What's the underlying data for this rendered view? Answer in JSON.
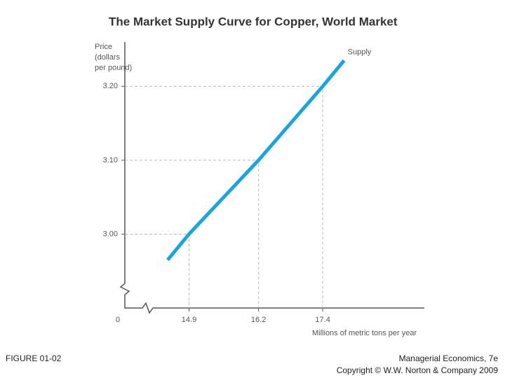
{
  "chart_data": {
    "type": "line",
    "title": "The Market Supply Curve for Copper, World Market",
    "ylabel": [
      "Price",
      "(dollars",
      "per pound)"
    ],
    "xlabel": "Millions of metric tons per year",
    "origin_label": "0",
    "x": [
      14.5,
      14.9,
      16.2,
      17.4,
      17.8
    ],
    "series": [
      {
        "name": "Supply",
        "color": "#1ba5dd",
        "values": [
          2.965,
          3.0,
          3.1,
          3.2,
          3.235
        ]
      }
    ],
    "xlim": [
      13.7,
      19.3
    ],
    "ylim": [
      2.9,
      3.26
    ],
    "xticks": [
      14.9,
      16.2,
      17.4
    ],
    "yticks": [
      {
        "value": 3.0,
        "label": "3.00"
      },
      {
        "value": 3.1,
        "label": "3.10"
      },
      {
        "value": 3.2,
        "label": "3.20"
      }
    ],
    "figure_label": "FIGURE 01-02",
    "source": [
      "Managerial Economics, 7e",
      "Copyright © W.W. Norton & Company 2009"
    ]
  }
}
